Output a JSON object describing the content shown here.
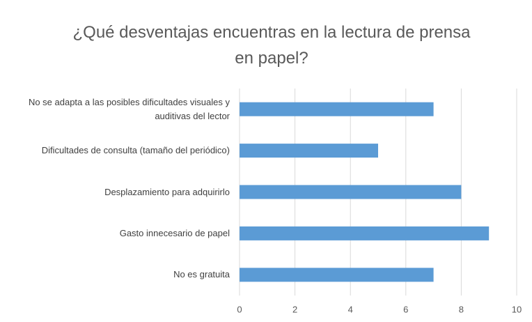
{
  "chart_data": {
    "type": "bar",
    "orientation": "horizontal",
    "title": "¿Qué desventajas encuentras en la lectura de prensa en papel?",
    "categories": [
      "No se adapta a las posibles dificultades visuales y auditivas del lector",
      "Dificultades de consulta (tamaño del periódico)",
      "Desplazamiento para adquirirlo",
      "Gasto innecesario de papel",
      "No es gratuita"
    ],
    "values": [
      7,
      5,
      8,
      9,
      7
    ],
    "color": "#5b9bd5",
    "xlim": [
      0,
      10
    ],
    "xticks": [
      0,
      2,
      4,
      6,
      8,
      10
    ],
    "grid": true
  }
}
